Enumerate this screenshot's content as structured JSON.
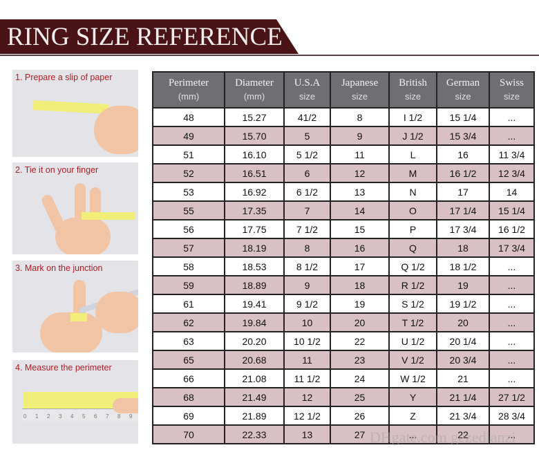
{
  "title": "RING SIZE REFERENCE",
  "steps": [
    {
      "label": "1. Prepare a slip of paper"
    },
    {
      "label": "2. Tie it on your finger"
    },
    {
      "label": "3. Mark on the junction"
    },
    {
      "label": "4. Measure the perimeter"
    }
  ],
  "ruler_ticks": [
    "0",
    "1",
    "2",
    "3",
    "4",
    "5",
    "6",
    "7",
    "8",
    "9"
  ],
  "table": {
    "headers": [
      {
        "line1": "Perimeter",
        "line2": "(mm)"
      },
      {
        "line1": "Diameter",
        "line2": "(mm)"
      },
      {
        "line1": "U.S.A",
        "line2": "size"
      },
      {
        "line1": "Japanese",
        "line2": "size"
      },
      {
        "line1": "British",
        "line2": "size"
      },
      {
        "line1": "German",
        "line2": "size"
      },
      {
        "line1": "Swiss",
        "line2": "size"
      }
    ],
    "rows": [
      [
        "48",
        "15.27",
        "41/2",
        "8",
        "I 1/2",
        "15 1/4",
        "..."
      ],
      [
        "49",
        "15.70",
        "5",
        "9",
        "J 1/2",
        "15 3/4",
        "..."
      ],
      [
        "51",
        "16.10",
        "5 1/2",
        "11",
        "L",
        "16",
        "11 3/4"
      ],
      [
        "52",
        "16.51",
        "6",
        "12",
        "M",
        "16 1/2",
        "12 3/4"
      ],
      [
        "53",
        "16.92",
        "6 1/2",
        "13",
        "N",
        "17",
        "14"
      ],
      [
        "55",
        "17.35",
        "7",
        "14",
        "O",
        "17 1/4",
        "15 1/4"
      ],
      [
        "56",
        "17.75",
        "7 1/2",
        "15",
        "P",
        "17 3/4",
        "16 1/2"
      ],
      [
        "57",
        "18.19",
        "8",
        "16",
        "Q",
        "18",
        "17 3/4"
      ],
      [
        "58",
        "18.53",
        "8 1/2",
        "17",
        "Q  1/2",
        "18 1/2",
        "..."
      ],
      [
        "59",
        "18.89",
        "9",
        "18",
        "R 1/2",
        "19",
        "..."
      ],
      [
        "61",
        "19.41",
        "9 1/2",
        "19",
        "S 1/2",
        "19 1/2",
        "..."
      ],
      [
        "62",
        "19.84",
        "10",
        "20",
        "T 1/2",
        "20",
        "..."
      ],
      [
        "63",
        "20.20",
        "10 1/2",
        "22",
        "U 1/2",
        "20 1/4",
        "..."
      ],
      [
        "65",
        "20.68",
        "11",
        "23",
        "V 1/2",
        "20 3/4",
        "..."
      ],
      [
        "66",
        "21.08",
        "11 1/2",
        "24",
        "W 1/2",
        "21",
        "..."
      ],
      [
        "68",
        "21.49",
        "12",
        "25",
        "Y",
        "21 1/4",
        "27 1/2"
      ],
      [
        "69",
        "21.89",
        "12 1/2",
        "26",
        "Z",
        "21 3/4",
        "28 3/4"
      ],
      [
        "70",
        "22.33",
        "13",
        "27",
        "...",
        "22",
        "..."
      ]
    ]
  },
  "watermark": "DHgate.com gezedianzi",
  "colors": {
    "banner": "#4a1416",
    "header": "#6e6e73",
    "pink_row": "#d8c0c4",
    "step_text": "#b01c24"
  }
}
